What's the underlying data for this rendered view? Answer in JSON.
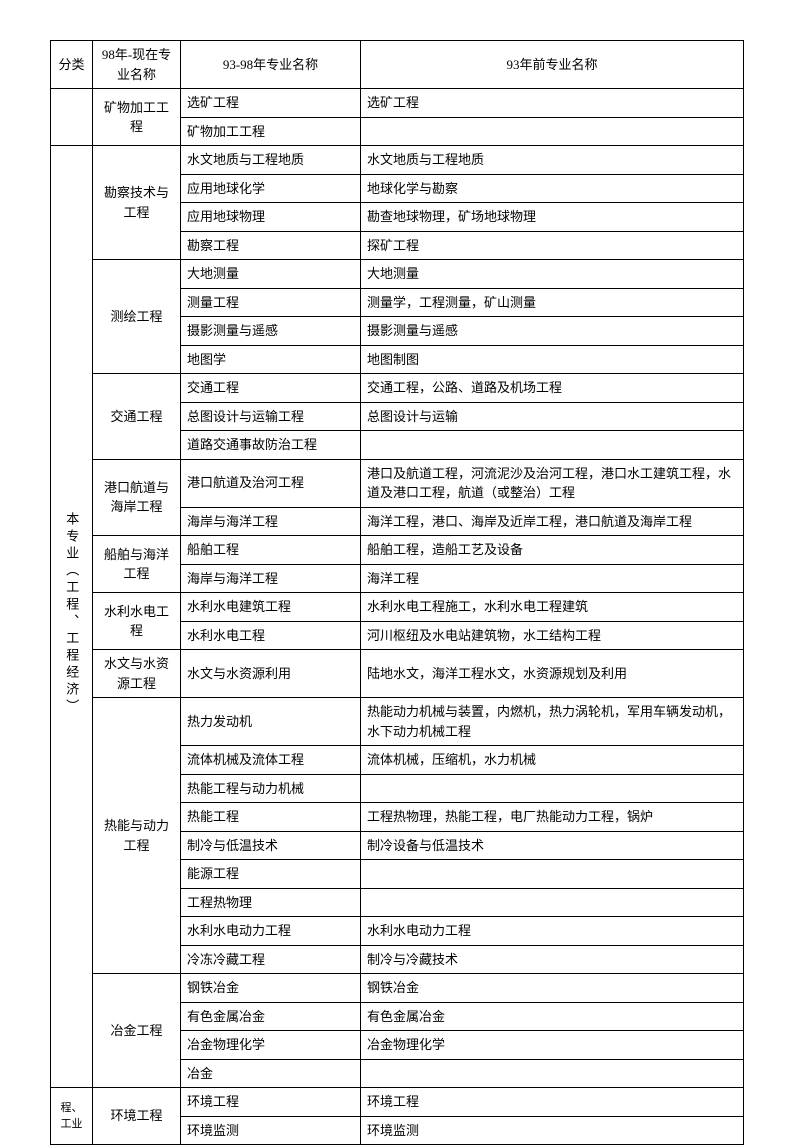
{
  "headers": {
    "c1": "分类",
    "c2": "98年-现在专业名称",
    "c3": "93-98年专业名称",
    "c4": "93年前专业名称"
  },
  "group1_cat": "矿物加工工程",
  "r1c3": "选矿工程",
  "r1c4": "选矿工程",
  "r2c3": "矿物加工工程",
  "r2c4": "",
  "main_category": "本专业（工程、工程经济）",
  "group2_cat": "勘察技术与工程",
  "r3c3": "水文地质与工程地质",
  "r3c4": "水文地质与工程地质",
  "r4c3": "应用地球化学",
  "r4c4": "地球化学与勘察",
  "r5c3": "应用地球物理",
  "r5c4": "勘查地球物理，矿场地球物理",
  "r6c3": "勘察工程",
  "r6c4": "探矿工程",
  "group3_cat": "测绘工程",
  "r7c3": "大地测量",
  "r7c4": "大地测量",
  "r8c3": "测量工程",
  "r8c4": "测量学，工程测量，矿山测量",
  "r9c3": "摄影测量与遥感",
  "r9c4": "摄影测量与遥感",
  "r10c3": "地图学",
  "r10c4": "地图制图",
  "group4_cat": "交通工程",
  "r11c3": "交通工程",
  "r11c4": "交通工程，公路、道路及机场工程",
  "r12c3": "总图设计与运输工程",
  "r12c4": "总图设计与运输",
  "r13c3": "道路交通事故防治工程",
  "r13c4": "",
  "group5_cat": "港口航道与海岸工程",
  "r14c3": "港口航道及治河工程",
  "r14c4": "港口及航道工程，河流泥沙及治河工程，港口水工建筑工程，水道及港口工程，航道（或整治）工程",
  "r15c3": "海岸与海洋工程",
  "r15c4": "海洋工程，港口、海岸及近岸工程，港口航道及海岸工程",
  "group6_cat": "船舶与海洋工程",
  "r16c3": "船舶工程",
  "r16c4": "船舶工程，造船工艺及设备",
  "r17c3": "海岸与海洋工程",
  "r17c4": "海洋工程",
  "group7_cat": "水利水电工程",
  "r18c3": "水利水电建筑工程",
  "r18c4": "水利水电工程施工，水利水电工程建筑",
  "r19c3": "水利水电工程",
  "r19c4": "河川枢纽及水电站建筑物，水工结构工程",
  "group8_cat": "水文与水资源工程",
  "r20c3": "水文与水资源利用",
  "r20c4": "陆地水文，海洋工程水文，水资源规划及利用",
  "group9_cat": "热能与动力工程",
  "r21c3": "热力发动机",
  "r21c4": "热能动力机械与装置，内燃机，热力涡轮机，军用车辆发动机，水下动力机械工程",
  "r22c3": "流体机械及流体工程",
  "r22c4": "流体机械，压缩机，水力机械",
  "r23c3": "热能工程与动力机械",
  "r23c4": "",
  "r24c3": "热能工程",
  "r24c4": "工程热物理，热能工程，电厂热能动力工程，锅炉",
  "r25c3": "制冷与低温技术",
  "r25c4": "制冷设备与低温技术",
  "r26c3": "能源工程",
  "r26c4": "",
  "r27c3": "工程热物理",
  "r27c4": "",
  "r28c3": "水利水电动力工程",
  "r28c4": "水利水电动力工程",
  "r29c3": "冷冻冷藏工程",
  "r29c4": "制冷与冷藏技术",
  "group10_cat": "冶金工程",
  "r30c3": "钢铁冶金",
  "r30c4": "钢铁冶金",
  "r31c3": "有色金属冶金",
  "r31c4": "有色金属冶金",
  "r32c3": "冶金物理化学",
  "r32c4": "冶金物理化学",
  "r33c3": "冶金",
  "r33c4": "",
  "bottom_category": "程、工业",
  "group11_cat": "环境工程",
  "r34c3": "环境工程",
  "r34c4": "环境工程",
  "r35c3": "环境监测",
  "r35c4": "环境监测"
}
